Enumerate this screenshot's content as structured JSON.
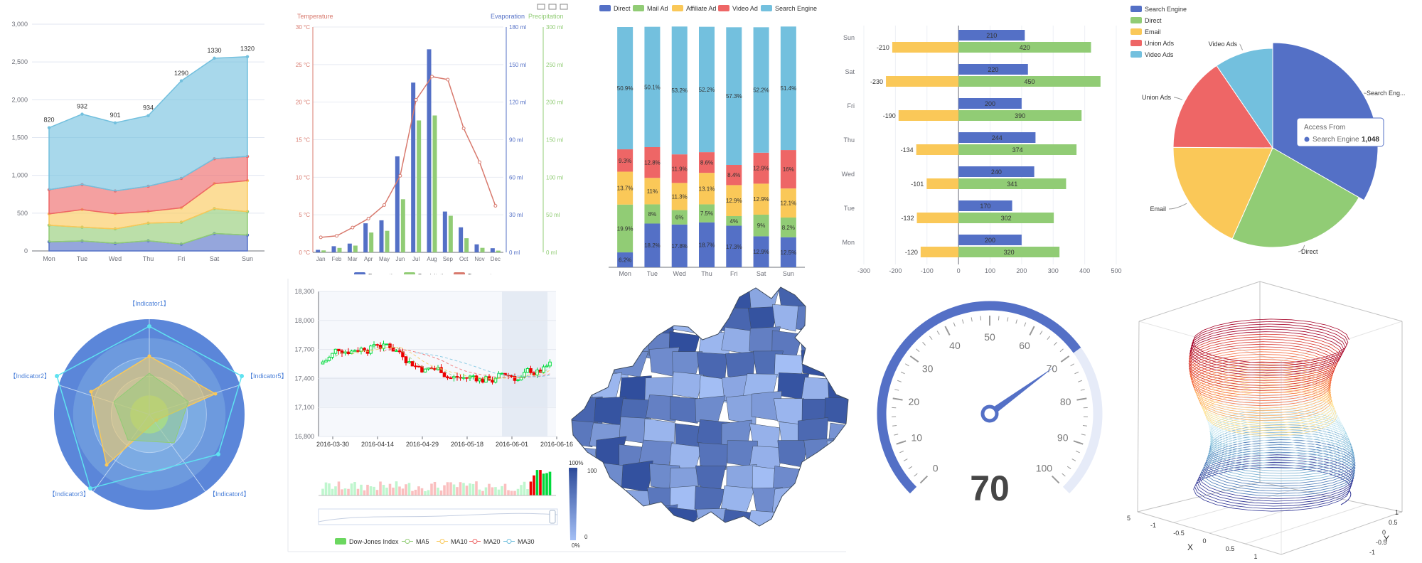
{
  "chart_data": [
    {
      "type": "area",
      "stacked": true,
      "categories": [
        "Mon",
        "Tue",
        "Wed",
        "Thu",
        "Fri",
        "Sat",
        "Sun"
      ],
      "ylim": [
        0,
        3000
      ],
      "yticks": [
        "0",
        "500",
        "1,000",
        "1,500",
        "2,000",
        "2,500",
        "3,000"
      ],
      "grid": true,
      "series": [
        {
          "values": [
            120,
            132,
            101,
            134,
            90,
            230,
            210
          ],
          "color": "#5470c6"
        },
        {
          "values": [
            220,
            182,
            191,
            234,
            290,
            330,
            310
          ],
          "color": "#91cc75"
        },
        {
          "values": [
            150,
            232,
            201,
            154,
            190,
            330,
            410
          ],
          "color": "#fac858"
        },
        {
          "values": [
            320,
            332,
            301,
            334,
            390,
            330,
            320
          ],
          "color": "#ee6666"
        },
        {
          "values": [
            820,
            932,
            901,
            934,
            1290,
            1330,
            1320
          ],
          "color": "#73c0de"
        }
      ],
      "top_labels": [
        "820",
        "932",
        "901",
        "934",
        "1290",
        "1330",
        "1320"
      ]
    },
    {
      "type": "bar+line",
      "categories": [
        "Jan",
        "Feb",
        "Mar",
        "Apr",
        "May",
        "Jun",
        "Jul",
        "Aug",
        "Sep",
        "Oct",
        "Nov",
        "Dec"
      ],
      "axis_names": {
        "temperature": "Temperature",
        "evaporation": "Evaporation",
        "precipitation": "Precipitation"
      },
      "temperature_ticks": [
        "0 °C",
        "5 °C",
        "10 °C",
        "15 °C",
        "20 °C",
        "25 °C",
        "30 °C"
      ],
      "evaporation_ticks": [
        "0 ml",
        "30 ml",
        "60 ml",
        "90 ml",
        "120 ml",
        "150 ml",
        "180 ml"
      ],
      "precipitation_ticks": [
        "0 ml",
        "50 ml",
        "100 ml",
        "150 ml",
        "200 ml",
        "250 ml",
        "300 ml"
      ],
      "temperature_lim": [
        0,
        30
      ],
      "evaporation_lim": [
        0,
        180
      ],
      "precipitation_lim": [
        0,
        300
      ],
      "series": [
        {
          "name": "Evaporation",
          "values": [
            2.0,
            4.9,
            7.0,
            23.2,
            25.6,
            76.7,
            135.6,
            162.2,
            32.6,
            20.0,
            6.4,
            3.3
          ],
          "color": "#5470c6"
        },
        {
          "name": "Precipitation",
          "values": [
            2.6,
            5.9,
            9.0,
            26.4,
            28.7,
            70.7,
            175.6,
            182.2,
            48.7,
            18.8,
            6.0,
            2.3
          ],
          "color": "#91cc75"
        },
        {
          "name": "Temperature",
          "values": [
            2.0,
            2.2,
            3.3,
            4.5,
            6.3,
            10.2,
            20.3,
            23.4,
            23.0,
            16.5,
            12.0,
            6.2
          ],
          "color": "#d8796d"
        }
      ],
      "legend": [
        "Evaporation",
        "Precipitation",
        "Temperature"
      ]
    },
    {
      "type": "bar",
      "stacked": true,
      "normalized": true,
      "categories": [
        "Mon",
        "Tue",
        "Wed",
        "Thu",
        "Fri",
        "Sat",
        "Sun"
      ],
      "legend": [
        "Direct",
        "Mail Ad",
        "Affiliate Ad",
        "Video Ad",
        "Search Engine"
      ],
      "series": [
        {
          "name": "Direct",
          "color": "#5470c6",
          "values": [
            6.2,
            18.2,
            17.8,
            18.7,
            17.3,
            12.9,
            12.5
          ],
          "labels": [
            "6.2%",
            "18.2%",
            "17.8%",
            "18.7%",
            "17.3%",
            "12.9%",
            "12.5%"
          ]
        },
        {
          "name": "Mail Ad",
          "color": "#91cc75",
          "values": [
            19.9,
            8,
            6,
            7.5,
            4,
            9,
            8.2
          ],
          "labels": [
            "19.9%",
            "8%",
            "6%",
            "7.5%",
            "4%",
            "9%",
            "8.2%"
          ]
        },
        {
          "name": "Affiliate Ad",
          "color": "#fac858",
          "values": [
            13.7,
            11,
            11.3,
            13.1,
            12.9,
            12.9,
            12.1
          ],
          "labels": [
            "13.7%",
            "11%",
            "11.3%",
            "13.1%",
            "12.9%",
            "12.9%",
            "12.1%"
          ]
        },
        {
          "name": "Video Ad",
          "color": "#ee6666",
          "values": [
            9.3,
            12.8,
            11.9,
            8.6,
            8.4,
            12.9,
            16
          ],
          "labels": [
            "9.3%",
            "12.8%",
            "11.9%",
            "8.6%",
            "8.4%",
            "12.9%",
            "16%"
          ]
        },
        {
          "name": "Search Engine",
          "color": "#73c0de",
          "values": [
            50.9,
            50.1,
            53.2,
            52.2,
            57.3,
            52.2,
            51.4
          ],
          "labels": [
            "50.9%",
            "50.1%",
            "53.2%",
            "52.2%",
            "57.3%",
            "52.2%",
            "51.4%"
          ]
        }
      ]
    },
    {
      "type": "bar",
      "orientation": "horizontal",
      "categories": [
        "Mon",
        "Tue",
        "Wed",
        "Thu",
        "Fri",
        "Sat",
        "Sun"
      ],
      "xlim": [
        -300,
        500
      ],
      "xticks": [
        "-300",
        "-200",
        "-100",
        "0",
        "100",
        "200",
        "300",
        "400",
        "500"
      ],
      "series": [
        {
          "color": "#5470c6",
          "values": [
            200,
            170,
            240,
            244,
            200,
            220,
            210
          ],
          "labels": [
            "200",
            "170",
            "240",
            "244",
            "200",
            "220",
            "210"
          ]
        },
        {
          "color": "#91cc75",
          "values": [
            320,
            302,
            341,
            374,
            390,
            450,
            420
          ],
          "labels": [
            "320",
            "302",
            "341",
            "374",
            "390",
            "450",
            "420"
          ]
        },
        {
          "color": "#fac858",
          "values": [
            -120,
            -132,
            -101,
            -134,
            -190,
            -230,
            -210
          ],
          "labels": [
            "-120",
            "-132",
            "-101",
            "-134",
            "-190",
            "-230",
            "-210"
          ]
        }
      ]
    },
    {
      "type": "pie",
      "legend": [
        "Search Engine",
        "Direct",
        "Email",
        "Union Ads",
        "Video Ads"
      ],
      "slices": [
        {
          "name": "Search Engine",
          "label": "Search Eng...",
          "value": 1048,
          "color": "#5470c6"
        },
        {
          "name": "Direct",
          "label": "Direct",
          "value": 735,
          "color": "#91cc75"
        },
        {
          "name": "Email",
          "label": "Email",
          "value": 580,
          "color": "#fac858"
        },
        {
          "name": "Union Ads",
          "label": "Union Ads",
          "value": 484,
          "color": "#ee6666"
        },
        {
          "name": "Video Ads",
          "label": "Video Ads",
          "value": 300,
          "color": "#73c0de"
        }
      ],
      "tooltip": {
        "title": "Access From",
        "name": "Search Engine",
        "value": "1,048"
      }
    },
    {
      "type": "radar",
      "indicators": [
        "【Indicator1】",
        "【Indicator2】",
        "【Indicator3】",
        "【Indicator4】",
        "【Indicator5】"
      ],
      "series": [
        {
          "values": [
            100,
            8,
            0.4,
            -80,
            2000
          ],
          "color": "#fac858"
        },
        {
          "values": [
            60,
            5,
            0.3,
            -100,
            1500
          ],
          "color": "#91cc75"
        }
      ]
    },
    {
      "type": "candlestick",
      "yticks": [
        "16,800",
        "17,100",
        "17,400",
        "17,700",
        "18,000",
        "18,300"
      ],
      "ylim": [
        16800,
        18300
      ],
      "xticks": [
        "2016-03-30",
        "2016-04-14",
        "2016-04-29",
        "2016-05-18",
        "2016-06-01",
        "2016-06-16"
      ],
      "legend": [
        "Dow-Jones Index",
        "MA5",
        "MA10",
        "MA20",
        "MA30"
      ],
      "up_color": "#00da3c",
      "down_color": "#ec0000"
    },
    {
      "type": "map",
      "visual_map": {
        "max_label": "100%",
        "min_label": "0%",
        "high": "100",
        "low": "0"
      },
      "color_low": "#a4bff5",
      "color_high": "#2f4d9c"
    },
    {
      "type": "gauge",
      "value": 70,
      "min": 0,
      "max": 100,
      "ticks": [
        "0",
        "10",
        "20",
        "30",
        "40",
        "50",
        "60",
        "70",
        "80",
        "90",
        "100"
      ],
      "detail": "70",
      "color": "#5470c6"
    },
    {
      "type": "3d-line",
      "axes": {
        "x": "X",
        "y": "Y"
      },
      "x_ticks": [
        "-1",
        "-0.5",
        "0",
        "0.5",
        "1"
      ],
      "y_ticks": [
        "1",
        "0.5",
        "0",
        "-0.5",
        "-1"
      ],
      "z_tick": "5"
    }
  ]
}
